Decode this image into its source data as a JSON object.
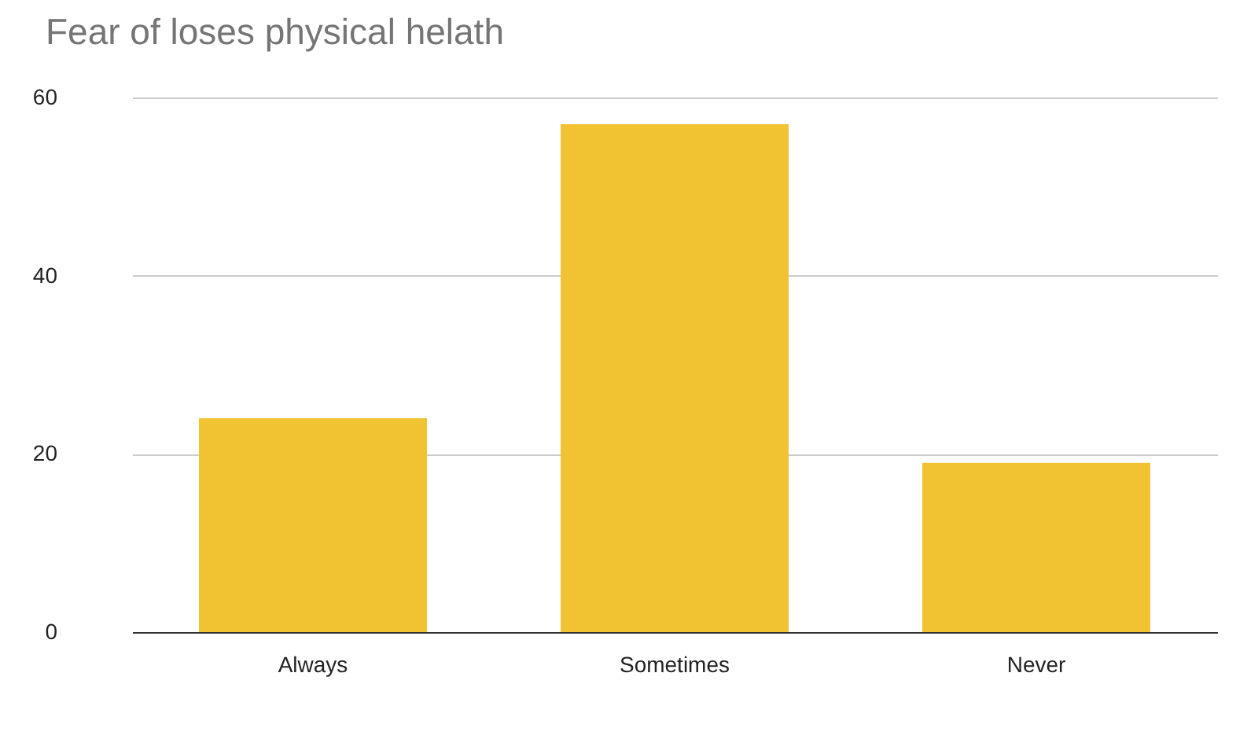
{
  "chart_data": {
    "type": "bar",
    "title": "Fear of loses physical helath",
    "categories": [
      "Always",
      "Sometimes",
      "Never"
    ],
    "values": [
      24,
      57,
      19
    ],
    "color": "#f1c232",
    "ylim": [
      0,
      60
    ],
    "yticks": [
      0,
      20,
      40,
      60
    ],
    "grid": "y"
  }
}
